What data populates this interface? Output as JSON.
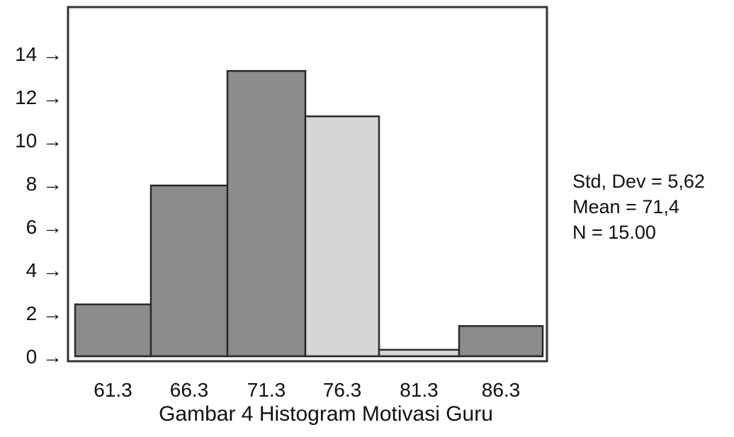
{
  "chart_data": {
    "type": "bar",
    "title": "Gambar 4 Histogram Motivasi Guru",
    "xlabel": "",
    "ylabel": "",
    "categories": [
      "61.3",
      "66.3",
      "71.3",
      "76.3",
      "81.3",
      "86.3"
    ],
    "values": [
      2.4,
      7.9,
      13.2,
      11.1,
      0.3,
      1.4
    ],
    "ylim": [
      0,
      15.5
    ],
    "yticks": [
      "0",
      "2",
      "4",
      "6",
      "8",
      "10",
      "12",
      "14"
    ],
    "tick_arrow": "→",
    "grid": false,
    "legend": "none",
    "bar_colors": [
      "#8c8c8c",
      "#8c8c8c",
      "#8c8c8c",
      "#d6d6d6",
      "#d6d6d6",
      "#8c8c8c"
    ],
    "stats": [
      {
        "label": "Std, Dev",
        "value": "5,62"
      },
      {
        "label": "Mean",
        "value": "71,4"
      },
      {
        "label": "N",
        "value": "15.00"
      }
    ]
  }
}
